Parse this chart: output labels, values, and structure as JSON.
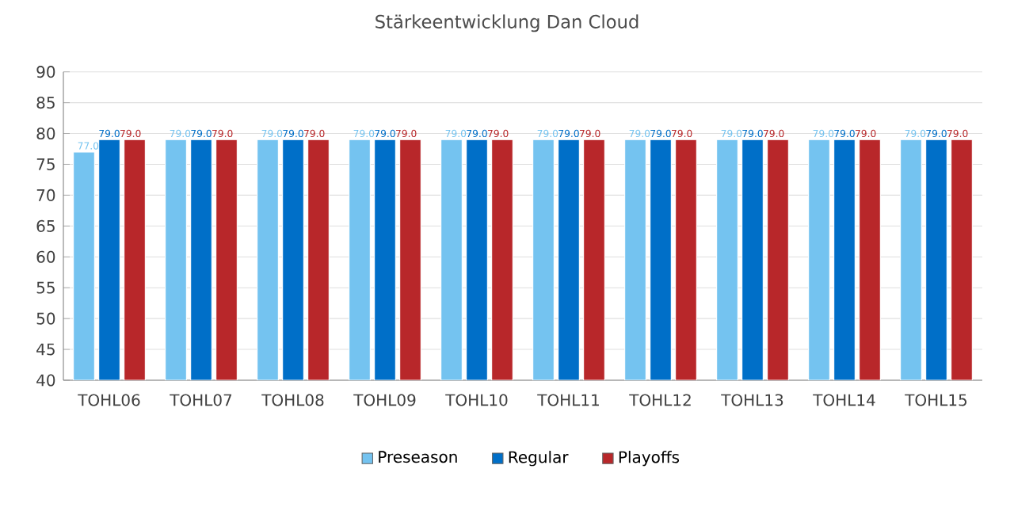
{
  "chart_data": {
    "type": "bar",
    "title": "Stärkeentwicklung Dan Cloud",
    "categories": [
      "TOHL06",
      "TOHL07",
      "TOHL08",
      "TOHL09",
      "TOHL10",
      "TOHL11",
      "TOHL12",
      "TOHL13",
      "TOHL14",
      "TOHL15"
    ],
    "series": [
      {
        "name": "Preseason",
        "color": "#74c3f0",
        "values": [
          77.0,
          79.0,
          79.0,
          79.0,
          79.0,
          79.0,
          79.0,
          79.0,
          79.0,
          79.0
        ],
        "value_labels": [
          "77.0",
          "79.0",
          "79.0",
          "79.0",
          "79.0",
          "79.0",
          "79.0",
          "79.0",
          "79.0",
          "79.0"
        ]
      },
      {
        "name": "Regular",
        "color": "#006fc8",
        "values": [
          79.0,
          79.0,
          79.0,
          79.0,
          79.0,
          79.0,
          79.0,
          79.0,
          79.0,
          79.0
        ],
        "value_labels": [
          "79.0",
          "79.0",
          "79.0",
          "79.0",
          "79.0",
          "79.0",
          "79.0",
          "79.0",
          "79.0",
          "79.0"
        ]
      },
      {
        "name": "Playoffs",
        "color": "#b8272a",
        "values": [
          79.0,
          79.0,
          79.0,
          79.0,
          79.0,
          79.0,
          79.0,
          79.0,
          79.0,
          79.0
        ],
        "value_labels": [
          "79.0",
          "79.0",
          "79.0",
          "79.0",
          "79.0",
          "79.0",
          "79.0",
          "79.0",
          "79.0",
          "79.0"
        ]
      }
    ],
    "ylim": [
      40,
      90
    ],
    "yticks": [
      40,
      45,
      50,
      55,
      60,
      65,
      70,
      75,
      80,
      85,
      90
    ],
    "grid": "y",
    "legend": "bottom"
  }
}
